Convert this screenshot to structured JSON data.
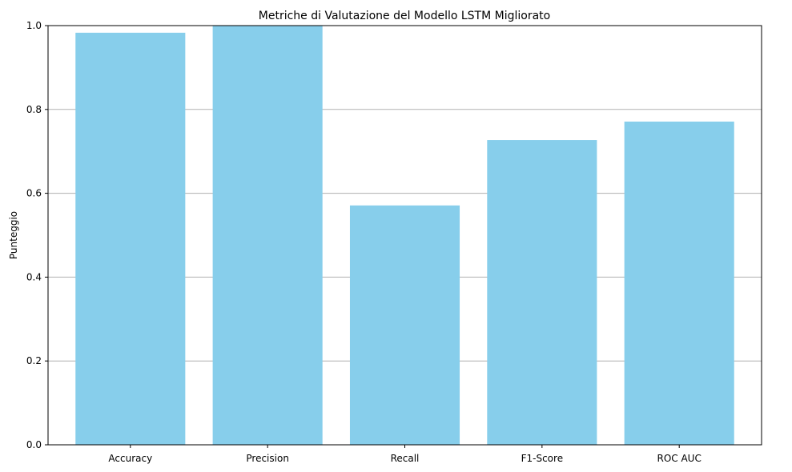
{
  "chart_data": {
    "type": "bar",
    "title": "Metriche di Valutazione del Modello LSTM Migliorato",
    "xlabel": "",
    "ylabel": "Punteggio",
    "categories": [
      "Accuracy",
      "Precision",
      "Recall",
      "F1-Score",
      "ROC AUC"
    ],
    "values": [
      0.983,
      1.0,
      0.571,
      0.727,
      0.771
    ],
    "ylim": [
      0,
      1.0
    ],
    "yticks": [
      "0.0",
      "0.2",
      "0.4",
      "0.6",
      "0.8",
      "1.0"
    ],
    "grid": "y-axis",
    "colors": {
      "bar": "#87CEEB",
      "grid": "#b0b0b0",
      "axis": "#000000"
    }
  }
}
